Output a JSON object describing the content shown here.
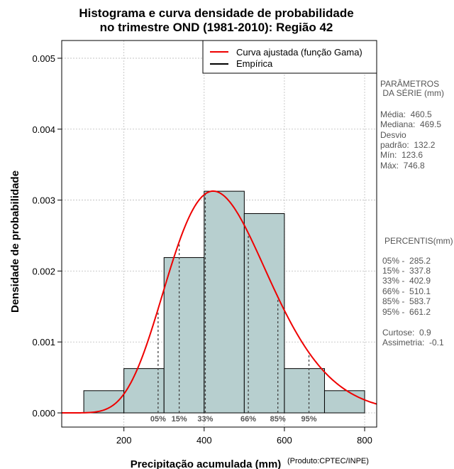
{
  "chart_data": {
    "type": "histogram",
    "title_line1": "Histograma e curva densidade de probabilidade",
    "title_line2": "no trimestre OND (1981-2010): Região 42",
    "xlabel": "Precipitação acumulada (mm)",
    "ylabel": "Densidade de probabilidade",
    "source": "(Produto:CPTEC/INPE)",
    "xlim": [
      45,
      830
    ],
    "ylim": [
      -0.0002,
      0.00525
    ],
    "x_ticks": [
      200,
      400,
      600,
      800
    ],
    "y_ticks": [
      0.0,
      0.001,
      0.002,
      0.003,
      0.004,
      0.005
    ],
    "y_tick_labels": [
      "0.000",
      "0.001",
      "0.002",
      "0.003",
      "0.004",
      "0.005"
    ],
    "grid": true,
    "bins": [
      {
        "x0": 100,
        "x1": 200,
        "density": 0.000313
      },
      {
        "x0": 200,
        "x1": 300,
        "density": 0.000625
      },
      {
        "x0": 300,
        "x1": 400,
        "density": 0.00219
      },
      {
        "x0": 400,
        "x1": 500,
        "density": 0.003125
      },
      {
        "x0": 500,
        "x1": 600,
        "density": 0.00281
      },
      {
        "x0": 600,
        "x1": 700,
        "density": 0.000625
      },
      {
        "x0": 700,
        "x1": 800,
        "density": 0.000313
      }
    ],
    "fitted_curve": {
      "name": "Curva ajustada (função Gama)",
      "distribution": "gamma",
      "mean": 460.5,
      "sd": 132.2,
      "color": "#ee0000"
    },
    "empirical": {
      "name": "Empírica",
      "color": "#000000"
    },
    "bar_color": "#b7cfcf",
    "legend_position": "top-right",
    "percentile_lines": [
      {
        "label": "05%",
        "value": 285.2
      },
      {
        "label": "15%",
        "value": 337.8
      },
      {
        "label": "33%",
        "value": 402.9
      },
      {
        "label": "66%",
        "value": 510.1
      },
      {
        "label": "85%",
        "value": 583.7
      },
      {
        "label": "95%",
        "value": 661.2
      }
    ]
  },
  "parameters": {
    "heading1": "PARÂMETROS",
    "heading2": " DA SÉRIE (mm)",
    "media": "Média:  460.5",
    "mediana": "Mediana:  469.5",
    "desvio1": "Desvio",
    "desvio2": "padrão:  132.2",
    "min": "Mín:  123.6",
    "max": "Máx:  746.8"
  },
  "percentis": {
    "heading": "PERCENTIS(mm)",
    "rows": [
      "05% -  285.2",
      "15% -  337.8",
      "33% -  402.9",
      "66% -  510.1",
      "85% -  583.7",
      "95% -  661.2"
    ],
    "curtose": "Curtose:  0.9",
    "assimetria": "Assimetria:  -0.1"
  }
}
